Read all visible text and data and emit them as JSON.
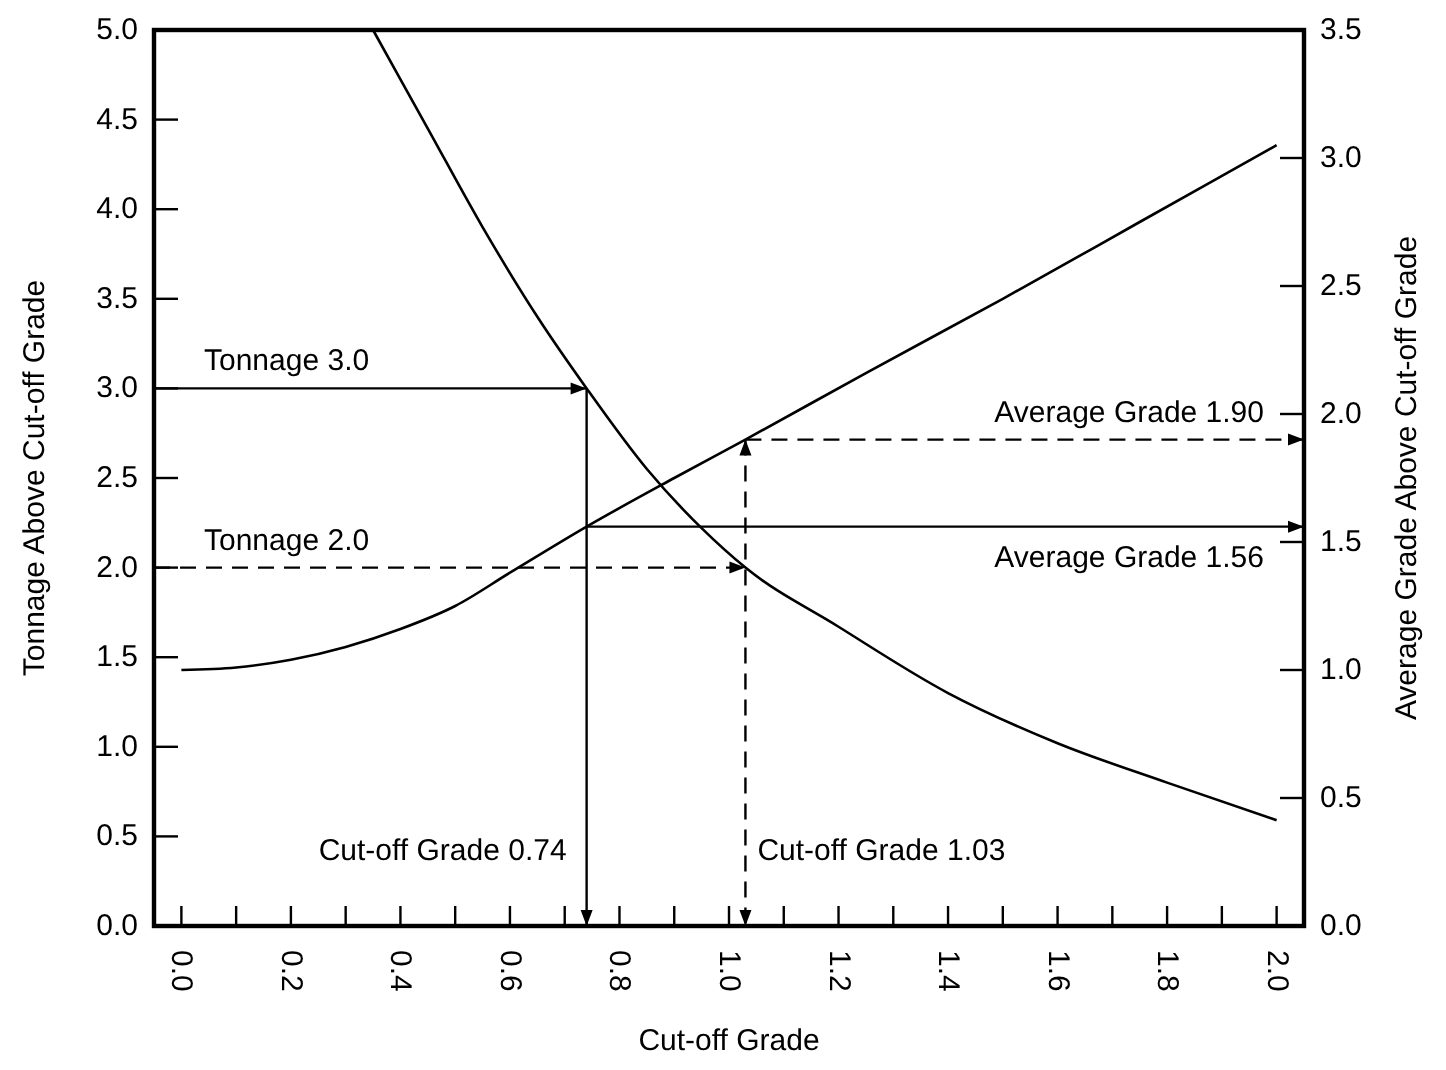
{
  "chart_data": {
    "type": "line",
    "xlabel": "Cut-off Grade",
    "ylabel": "Tonnage Above Cut-off Grade",
    "y2label": "Average Grade Above Cut-off Grade",
    "xlim": [
      -0.05,
      2.05
    ],
    "xticks": [
      {
        "value": 0,
        "label": "0.0"
      },
      {
        "value": 0.1,
        "label": null
      },
      {
        "value": 0.2,
        "label": "0.2"
      },
      {
        "value": 0.3,
        "label": null
      },
      {
        "value": 0.4,
        "label": "0.4"
      },
      {
        "value": 0.5,
        "label": null
      },
      {
        "value": 0.6,
        "label": "0.6"
      },
      {
        "value": 0.7,
        "label": null
      },
      {
        "value": 0.8,
        "label": "0.8"
      },
      {
        "value": 0.9,
        "label": null
      },
      {
        "value": 1.0,
        "label": "1.0"
      },
      {
        "value": 1.1,
        "label": null
      },
      {
        "value": 1.2,
        "label": "1.2"
      },
      {
        "value": 1.3,
        "label": null
      },
      {
        "value": 1.4,
        "label": "1.4"
      },
      {
        "value": 1.5,
        "label": null
      },
      {
        "value": 1.6,
        "label": "1.6"
      },
      {
        "value": 1.7,
        "label": null
      },
      {
        "value": 1.8,
        "label": "1.8"
      },
      {
        "value": 1.9,
        "label": null
      },
      {
        "value": 2.0,
        "label": "2.0"
      }
    ],
    "ylim": [
      0,
      5
    ],
    "yticks": [
      {
        "value": 0,
        "label": "0.0"
      },
      {
        "value": 0.5,
        "label": "0.5"
      },
      {
        "value": 1,
        "label": "1.0"
      },
      {
        "value": 1.5,
        "label": "1.5"
      },
      {
        "value": 2,
        "label": "2.0"
      },
      {
        "value": 2.5,
        "label": "2.5"
      },
      {
        "value": 3,
        "label": "3.0"
      },
      {
        "value": 3.5,
        "label": "3.5"
      },
      {
        "value": 4,
        "label": "4.0"
      },
      {
        "value": 4.5,
        "label": "4.5"
      },
      {
        "value": 5,
        "label": "5.0"
      }
    ],
    "y2lim": [
      0,
      3.5
    ],
    "y2ticks": [
      {
        "value": 0,
        "label": "0.0"
      },
      {
        "value": 0.5,
        "label": "0.5"
      },
      {
        "value": 1,
        "label": "1.0"
      },
      {
        "value": 1.5,
        "label": "1.5"
      },
      {
        "value": 2,
        "label": "2.0"
      },
      {
        "value": 2.5,
        "label": "2.5"
      },
      {
        "value": 3,
        "label": "3.0"
      },
      {
        "value": 3.5,
        "label": "3.5"
      }
    ],
    "grid": false,
    "marker": "none",
    "line_style": "solid",
    "series": [
      {
        "color": "#000000",
        "x": [
          0.35,
          0.45,
          0.55,
          0.65,
          0.74,
          0.85,
          0.95,
          1.03,
          1.2,
          1.4,
          1.6,
          1.8,
          2.0
        ],
        "values": [
          5.0,
          4.45,
          3.9,
          3.4,
          3.0,
          2.55,
          2.22,
          2.0,
          1.67,
          1.3,
          1.02,
          0.8,
          0.59
        ]
      },
      {
        "color": "#000000",
        "axis": "y2",
        "x": [
          0,
          0.1,
          0.2,
          0.3,
          0.4,
          0.5,
          0.6,
          0.74,
          0.9,
          1.03,
          1.25,
          1.5,
          1.75,
          2.0
        ],
        "values": [
          1.0,
          1.01,
          1.04,
          1.09,
          1.16,
          1.25,
          1.38,
          1.56,
          1.75,
          1.9,
          2.16,
          2.45,
          2.75,
          3.05
        ]
      }
    ],
    "ref_lines": [
      {
        "axis": "y",
        "value": 3.0,
        "label": "Tonnage 3.0",
        "line_style": "solid"
      },
      {
        "axis": "y",
        "value": 2.0,
        "label": "Tonnage 2.0",
        "line_style": "dashed"
      },
      {
        "axis": "x",
        "value": 0.74,
        "label": "Cut-off Grade 0.74",
        "line_style": "solid"
      },
      {
        "axis": "x",
        "value": 1.03,
        "label": "Cut-off Grade 1.03",
        "line_style": "dashed"
      },
      {
        "axis": "y2",
        "value": 1.56,
        "label": "Average Grade 1.56",
        "line_style": "solid"
      },
      {
        "axis": "y2",
        "value": 1.9,
        "label": "Average Grade 1.90",
        "line_style": "dashed"
      }
    ]
  }
}
